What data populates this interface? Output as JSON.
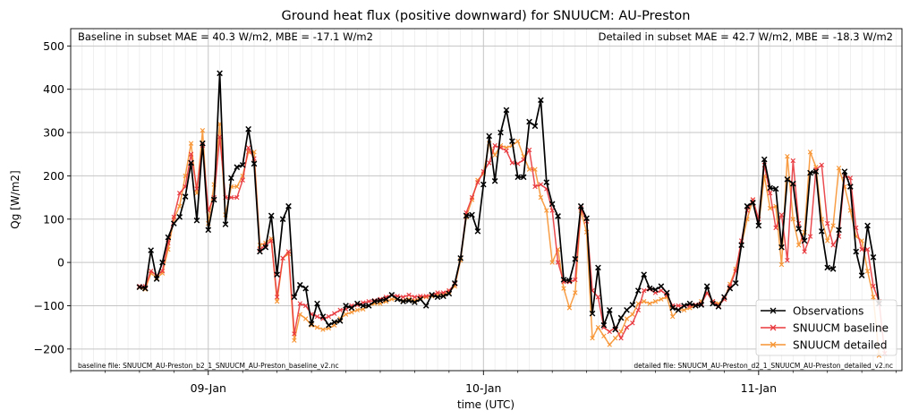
{
  "chart_data": {
    "type": "line",
    "title": "Ground heat flux (positive downward) for SNUUCM: AU-Preston",
    "xlabel": "time (UTC)",
    "ylabel": "Qg [W/m2]",
    "ylim": [
      -250,
      540
    ],
    "yticks": [
      -200,
      -100,
      0,
      100,
      200,
      300,
      400,
      500
    ],
    "ytick_labels": [
      "−200",
      "−100",
      "0",
      "100",
      "200",
      "300",
      "400",
      "500"
    ],
    "xrange_hours": [
      -12,
      60.5
    ],
    "xticks": [
      {
        "hour": 0,
        "label": "09-Jan"
      },
      {
        "hour": 24,
        "label": "10-Jan"
      },
      {
        "hour": 48,
        "label": "11-Jan"
      }
    ],
    "grid": true,
    "legend_position": "lower-right",
    "annotations": {
      "baseline_stats": "Baseline in subset MAE = 40.3 W/m2, MBE = -17.1 W/m2",
      "detailed_stats": "Detailed in subset MAE = 42.7 W/m2, MBE = -18.3 W/m2",
      "baseline_file": "baseline file: SNUUCM_AU-Preston_b2_1_SNUUCM_AU-Preston_baseline_v2.nc",
      "detailed_file": "detailed file: SNUUCM_AU-Preston_d2_1_SNUUCM_AU-Preston_detailed_v2.nc"
    },
    "x_start_hour": -6,
    "x_step_hours": 0.5,
    "series": [
      {
        "name": "Observations",
        "color": "#000000",
        "values": [
          -57,
          -60,
          28,
          -38,
          0,
          58,
          90,
          105,
          152,
          230,
          97,
          275,
          75,
          145,
          437,
          88,
          195,
          220,
          225,
          308,
          228,
          25,
          35,
          108,
          -28,
          100,
          130,
          -80,
          -52,
          -60,
          -142,
          -95,
          -125,
          -145,
          -138,
          -135,
          -100,
          -105,
          -95,
          -100,
          -100,
          -90,
          -88,
          -85,
          -75,
          -85,
          -90,
          -88,
          -92,
          -85,
          -100,
          -75,
          -80,
          -78,
          -72,
          -48,
          10,
          108,
          110,
          72,
          180,
          292,
          188,
          300,
          352,
          280,
          197,
          197,
          325,
          315,
          375,
          185,
          135,
          107,
          -40,
          -42,
          8,
          130,
          102,
          -118,
          -12,
          -145,
          -110,
          -155,
          -128,
          -110,
          -98,
          -65,
          -28,
          -60,
          -63,
          -55,
          -70,
          -105,
          -110,
          -100,
          -95,
          -100,
          -98,
          -55,
          -95,
          -102,
          -80,
          -60,
          -48,
          40,
          130,
          138,
          85,
          238,
          172,
          170,
          35,
          192,
          182,
          78,
          50,
          207,
          210,
          72,
          -12,
          -15,
          75,
          210,
          175,
          25,
          -30,
          85,
          12,
          -95
        ]
      },
      {
        "name": "SNUUCM baseline",
        "color": "#e8383d",
        "values": [
          -55,
          -55,
          -20,
          -30,
          -20,
          45,
          105,
          160,
          175,
          250,
          170,
          270,
          120,
          150,
          290,
          150,
          150,
          150,
          190,
          265,
          240,
          30,
          40,
          50,
          -80,
          10,
          25,
          -165,
          -95,
          -100,
          -120,
          -125,
          -130,
          -125,
          -118,
          -110,
          -108,
          -100,
          -98,
          -93,
          -90,
          -88,
          -85,
          -80,
          -75,
          -78,
          -80,
          -75,
          -80,
          -78,
          -78,
          -75,
          -70,
          -70,
          -65,
          -50,
          10,
          115,
          150,
          185,
          210,
          230,
          270,
          265,
          258,
          230,
          228,
          237,
          260,
          175,
          180,
          170,
          120,
          0,
          -45,
          -45,
          -40,
          125,
          95,
          -65,
          -80,
          -150,
          -160,
          -150,
          -175,
          -150,
          -140,
          -110,
          -65,
          -62,
          -70,
          -65,
          -75,
          -100,
          -100,
          -100,
          -100,
          -98,
          -95,
          -70,
          -90,
          -100,
          -85,
          -55,
          -20,
          50,
          120,
          145,
          100,
          225,
          160,
          80,
          110,
          5,
          235,
          90,
          25,
          60,
          215,
          225,
          90,
          40,
          60,
          200,
          195,
          80,
          30,
          30,
          -55,
          -90,
          -210
        ]
      },
      {
        "name": "SNUUCM detailed",
        "color": "#f79432",
        "values": [
          -58,
          -62,
          -25,
          -35,
          -25,
          30,
          100,
          130,
          200,
          275,
          160,
          305,
          90,
          180,
          320,
          110,
          175,
          175,
          200,
          255,
          255,
          40,
          45,
          55,
          -90,
          10,
          20,
          -180,
          -120,
          -130,
          -145,
          -150,
          -155,
          -152,
          -145,
          -130,
          -120,
          -115,
          -110,
          -108,
          -100,
          -95,
          -95,
          -90,
          -85,
          -85,
          -88,
          -85,
          -88,
          -82,
          -80,
          -78,
          -75,
          -75,
          -68,
          -55,
          5,
          105,
          145,
          190,
          205,
          275,
          248,
          270,
          265,
          270,
          280,
          245,
          215,
          215,
          150,
          120,
          0,
          30,
          -60,
          -105,
          -70,
          120,
          70,
          -175,
          -150,
          -170,
          -190,
          -175,
          -160,
          -130,
          -120,
          -95,
          -90,
          -95,
          -90,
          -85,
          -80,
          -125,
          -110,
          -110,
          -105,
          -100,
          -90,
          -70,
          -90,
          -95,
          -85,
          -50,
          -15,
          40,
          100,
          145,
          85,
          200,
          125,
          130,
          -5,
          245,
          100,
          40,
          70,
          255,
          220,
          100,
          50,
          85,
          218,
          175,
          120,
          60,
          50,
          -20,
          -80,
          -215
        ]
      }
    ]
  }
}
